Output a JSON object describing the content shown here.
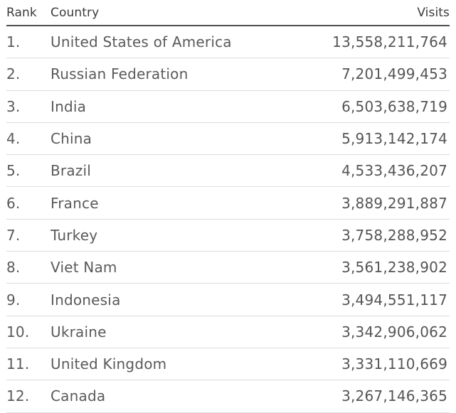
{
  "table": {
    "headers": {
      "rank": "Rank",
      "country": "Country",
      "visits": "Visits"
    },
    "rows": [
      {
        "rank": "1.",
        "country": "United States of America",
        "visits": "13,558,211,764"
      },
      {
        "rank": "2.",
        "country": "Russian Federation",
        "visits": "7,201,499,453"
      },
      {
        "rank": "3.",
        "country": "India",
        "visits": "6,503,638,719"
      },
      {
        "rank": "4.",
        "country": "China",
        "visits": "5,913,142,174"
      },
      {
        "rank": "5.",
        "country": "Brazil",
        "visits": "4,533,436,207"
      },
      {
        "rank": "6.",
        "country": "France",
        "visits": "3,889,291,887"
      },
      {
        "rank": "7.",
        "country": "Turkey",
        "visits": "3,758,288,952"
      },
      {
        "rank": "8.",
        "country": "Viet Nam",
        "visits": "3,561,238,902"
      },
      {
        "rank": "9.",
        "country": "Indonesia",
        "visits": "3,494,551,117"
      },
      {
        "rank": "10.",
        "country": "Ukraine",
        "visits": "3,342,906,062"
      },
      {
        "rank": "11.",
        "country": "United Kingdom",
        "visits": "3,331,110,669"
      },
      {
        "rank": "12.",
        "country": "Canada",
        "visits": "3,267,146,365"
      }
    ]
  }
}
